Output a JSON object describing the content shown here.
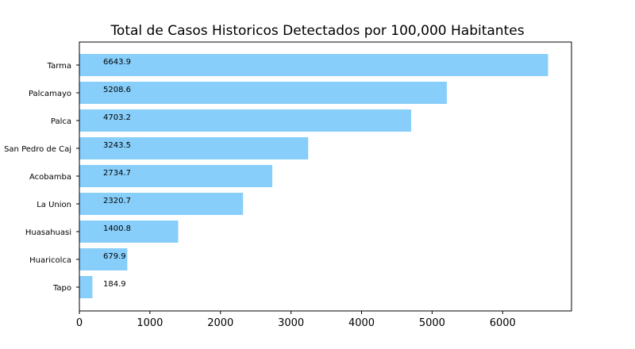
{
  "chart_data": {
    "type": "bar",
    "orientation": "horizontal",
    "title": "Total de Casos Historicos Detectados por 100,000 Habitantes",
    "xlabel": "",
    "ylabel": "",
    "categories": [
      "Tarma",
      "Palcamayo",
      "Palca",
      "San Pedro de Caj",
      "Acobamba",
      "La Union",
      "Huasahuasi",
      "Huaricolca",
      "Tapo"
    ],
    "values": [
      6643.9,
      5208.6,
      4703.2,
      3243.5,
      2734.7,
      2320.7,
      1400.8,
      679.9,
      184.9
    ],
    "data_labels": [
      "6643.9",
      "5208.6",
      "4703.2",
      "3243.5",
      "2734.7",
      "2320.7",
      "1400.8",
      "679.9",
      "184.9"
    ],
    "xlim": [
      0,
      6976
    ],
    "xticks": [
      0,
      1000,
      2000,
      3000,
      4000,
      5000,
      6000
    ],
    "xtick_labels": [
      "0",
      "1000",
      "2000",
      "3000",
      "4000",
      "5000",
      "6000"
    ],
    "bar_color": "#87cefa",
    "grid": false,
    "legend": "none"
  }
}
